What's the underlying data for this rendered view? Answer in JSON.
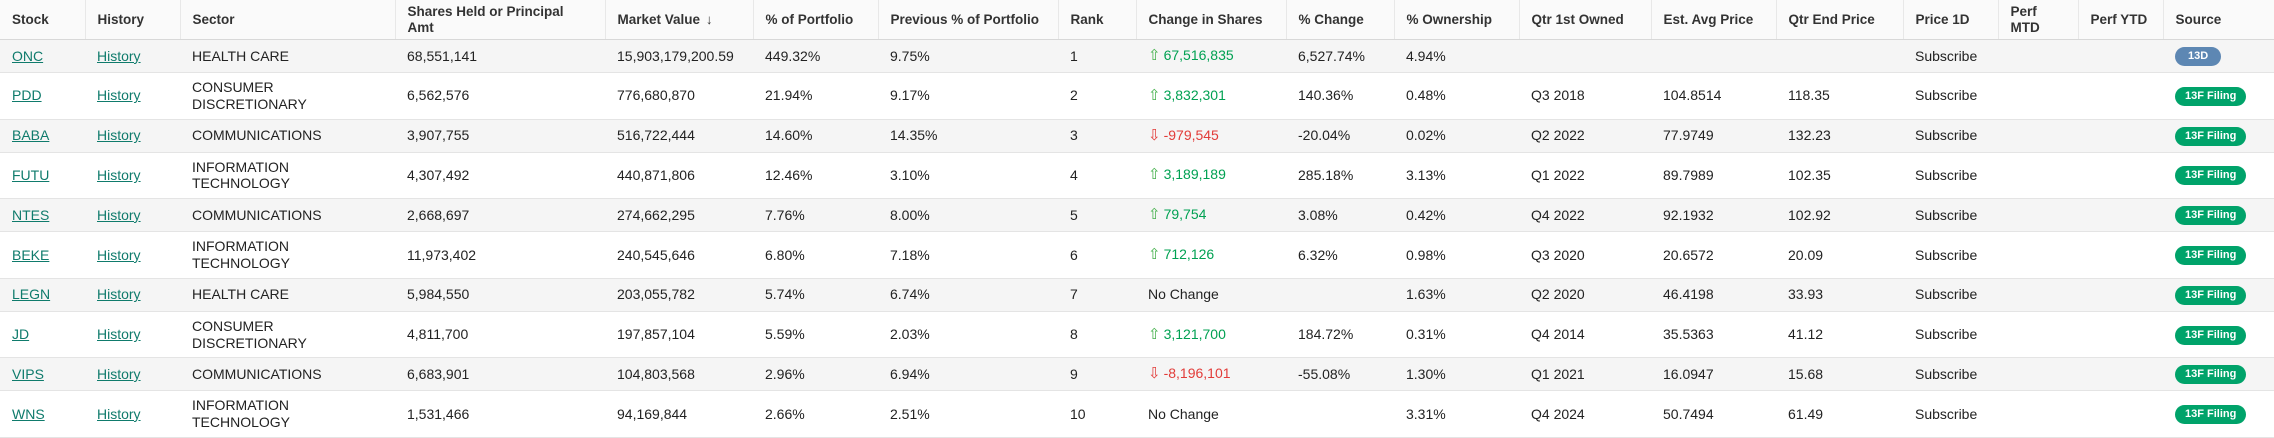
{
  "colors": {
    "link_teal": "#0f7b6c",
    "positive_green": "#00a152",
    "arrow_green": "#43b04a",
    "negative_red": "#e23c39",
    "badge_13f_green": "#00a36a",
    "badge_13d_blue": "#5d87b3",
    "header_bg": "#fafafa",
    "stripe_bg": "#f5f5f5"
  },
  "icons": {
    "sort_desc": "↓",
    "change_up": "⇧",
    "change_down": "⇩"
  },
  "table": {
    "sorted_column": "Market Value",
    "sort_direction": "descending",
    "columns": [
      {
        "label": "Stock"
      },
      {
        "label": "History"
      },
      {
        "label": "Sector"
      },
      {
        "label": "Shares Held or Principal Amt"
      },
      {
        "label": "Market Value"
      },
      {
        "label": "% of Portfolio"
      },
      {
        "label": "Previous % of Portfolio"
      },
      {
        "label": "Rank"
      },
      {
        "label": "Change in Shares"
      },
      {
        "label": "% Change"
      },
      {
        "label": "% Ownership"
      },
      {
        "label": "Qtr 1st Owned"
      },
      {
        "label": "Est. Avg Price"
      },
      {
        "label": "Qtr End Price"
      },
      {
        "label": "Price 1D"
      },
      {
        "label": "Perf MTD"
      },
      {
        "label": "Perf YTD"
      },
      {
        "label": "Source"
      }
    ],
    "rows": [
      {
        "stock": "ONC",
        "history": "History",
        "sector": "HEALTH CARE",
        "shares_held": "68,551,141",
        "market_value": "15,903,179,200.59",
        "pct_portfolio": "449.32%",
        "prev_pct_portfolio": "9.75%",
        "rank": "1",
        "change_in_shares": "67,516,835",
        "change_direction": "up",
        "pct_change": "6,527.74%",
        "pct_ownership": "4.94%",
        "qtr_first_owned": "",
        "est_avg_price": "",
        "qtr_end_price": "",
        "price_1d": "Subscribe",
        "perf_mtd": "",
        "perf_ytd": "",
        "source": "13D",
        "source_type": "13d"
      },
      {
        "stock": "PDD",
        "history": "History",
        "sector": "CONSUMER DISCRETIONARY",
        "shares_held": "6,562,576",
        "market_value": "776,680,870",
        "pct_portfolio": "21.94%",
        "prev_pct_portfolio": "9.17%",
        "rank": "2",
        "change_in_shares": "3,832,301",
        "change_direction": "up",
        "pct_change": "140.36%",
        "pct_ownership": "0.48%",
        "qtr_first_owned": "Q3 2018",
        "est_avg_price": "104.8514",
        "qtr_end_price": "118.35",
        "price_1d": "Subscribe",
        "perf_mtd": "",
        "perf_ytd": "",
        "source": "13F Filing",
        "source_type": "13f"
      },
      {
        "stock": "BABA",
        "history": "History",
        "sector": "COMMUNICATIONS",
        "shares_held": "3,907,755",
        "market_value": "516,722,444",
        "pct_portfolio": "14.60%",
        "prev_pct_portfolio": "14.35%",
        "rank": "3",
        "change_in_shares": "-979,545",
        "change_direction": "down",
        "pct_change": "-20.04%",
        "pct_ownership": "0.02%",
        "qtr_first_owned": "Q2 2022",
        "est_avg_price": "77.9749",
        "qtr_end_price": "132.23",
        "price_1d": "Subscribe",
        "perf_mtd": "",
        "perf_ytd": "",
        "source": "13F Filing",
        "source_type": "13f"
      },
      {
        "stock": "FUTU",
        "history": "History",
        "sector": "INFORMATION TECHNOLOGY",
        "shares_held": "4,307,492",
        "market_value": "440,871,806",
        "pct_portfolio": "12.46%",
        "prev_pct_portfolio": "3.10%",
        "rank": "4",
        "change_in_shares": "3,189,189",
        "change_direction": "up",
        "pct_change": "285.18%",
        "pct_ownership": "3.13%",
        "qtr_first_owned": "Q1 2022",
        "est_avg_price": "89.7989",
        "qtr_end_price": "102.35",
        "price_1d": "Subscribe",
        "perf_mtd": "",
        "perf_ytd": "",
        "source": "13F Filing",
        "source_type": "13f"
      },
      {
        "stock": "NTES",
        "history": "History",
        "sector": "COMMUNICATIONS",
        "shares_held": "2,668,697",
        "market_value": "274,662,295",
        "pct_portfolio": "7.76%",
        "prev_pct_portfolio": "8.00%",
        "rank": "5",
        "change_in_shares": "79,754",
        "change_direction": "up",
        "pct_change": "3.08%",
        "pct_ownership": "0.42%",
        "qtr_first_owned": "Q4 2022",
        "est_avg_price": "92.1932",
        "qtr_end_price": "102.92",
        "price_1d": "Subscribe",
        "perf_mtd": "",
        "perf_ytd": "",
        "source": "13F Filing",
        "source_type": "13f"
      },
      {
        "stock": "BEKE",
        "history": "History",
        "sector": "INFORMATION TECHNOLOGY",
        "shares_held": "11,973,402",
        "market_value": "240,545,646",
        "pct_portfolio": "6.80%",
        "prev_pct_portfolio": "7.18%",
        "rank": "6",
        "change_in_shares": "712,126",
        "change_direction": "up",
        "pct_change": "6.32%",
        "pct_ownership": "0.98%",
        "qtr_first_owned": "Q3 2020",
        "est_avg_price": "20.6572",
        "qtr_end_price": "20.09",
        "price_1d": "Subscribe",
        "perf_mtd": "",
        "perf_ytd": "",
        "source": "13F Filing",
        "source_type": "13f"
      },
      {
        "stock": "LEGN",
        "history": "History",
        "sector": "HEALTH CARE",
        "shares_held": "5,984,550",
        "market_value": "203,055,782",
        "pct_portfolio": "5.74%",
        "prev_pct_portfolio": "6.74%",
        "rank": "7",
        "change_in_shares": "No Change",
        "change_direction": "none",
        "pct_change": "",
        "pct_ownership": "1.63%",
        "qtr_first_owned": "Q2 2020",
        "est_avg_price": "46.4198",
        "qtr_end_price": "33.93",
        "price_1d": "Subscribe",
        "perf_mtd": "",
        "perf_ytd": "",
        "source": "13F Filing",
        "source_type": "13f"
      },
      {
        "stock": "JD",
        "history": "History",
        "sector": "CONSUMER DISCRETIONARY",
        "shares_held": "4,811,700",
        "market_value": "197,857,104",
        "pct_portfolio": "5.59%",
        "prev_pct_portfolio": "2.03%",
        "rank": "8",
        "change_in_shares": "3,121,700",
        "change_direction": "up",
        "pct_change": "184.72%",
        "pct_ownership": "0.31%",
        "qtr_first_owned": "Q4 2014",
        "est_avg_price": "35.5363",
        "qtr_end_price": "41.12",
        "price_1d": "Subscribe",
        "perf_mtd": "",
        "perf_ytd": "",
        "source": "13F Filing",
        "source_type": "13f"
      },
      {
        "stock": "VIPS",
        "history": "History",
        "sector": "COMMUNICATIONS",
        "shares_held": "6,683,901",
        "market_value": "104,803,568",
        "pct_portfolio": "2.96%",
        "prev_pct_portfolio": "6.94%",
        "rank": "9",
        "change_in_shares": "-8,196,101",
        "change_direction": "down",
        "pct_change": "-55.08%",
        "pct_ownership": "1.30%",
        "qtr_first_owned": "Q1 2021",
        "est_avg_price": "16.0947",
        "qtr_end_price": "15.68",
        "price_1d": "Subscribe",
        "perf_mtd": "",
        "perf_ytd": "",
        "source": "13F Filing",
        "source_type": "13f"
      },
      {
        "stock": "WNS",
        "history": "History",
        "sector": "INFORMATION TECHNOLOGY",
        "shares_held": "1,531,466",
        "market_value": "94,169,844",
        "pct_portfolio": "2.66%",
        "prev_pct_portfolio": "2.51%",
        "rank": "10",
        "change_in_shares": "No Change",
        "change_direction": "none",
        "pct_change": "",
        "pct_ownership": "3.31%",
        "qtr_first_owned": "Q4 2024",
        "est_avg_price": "50.7494",
        "qtr_end_price": "61.49",
        "price_1d": "Subscribe",
        "perf_mtd": "",
        "perf_ytd": "",
        "source": "13F Filing",
        "source_type": "13f"
      }
    ]
  }
}
